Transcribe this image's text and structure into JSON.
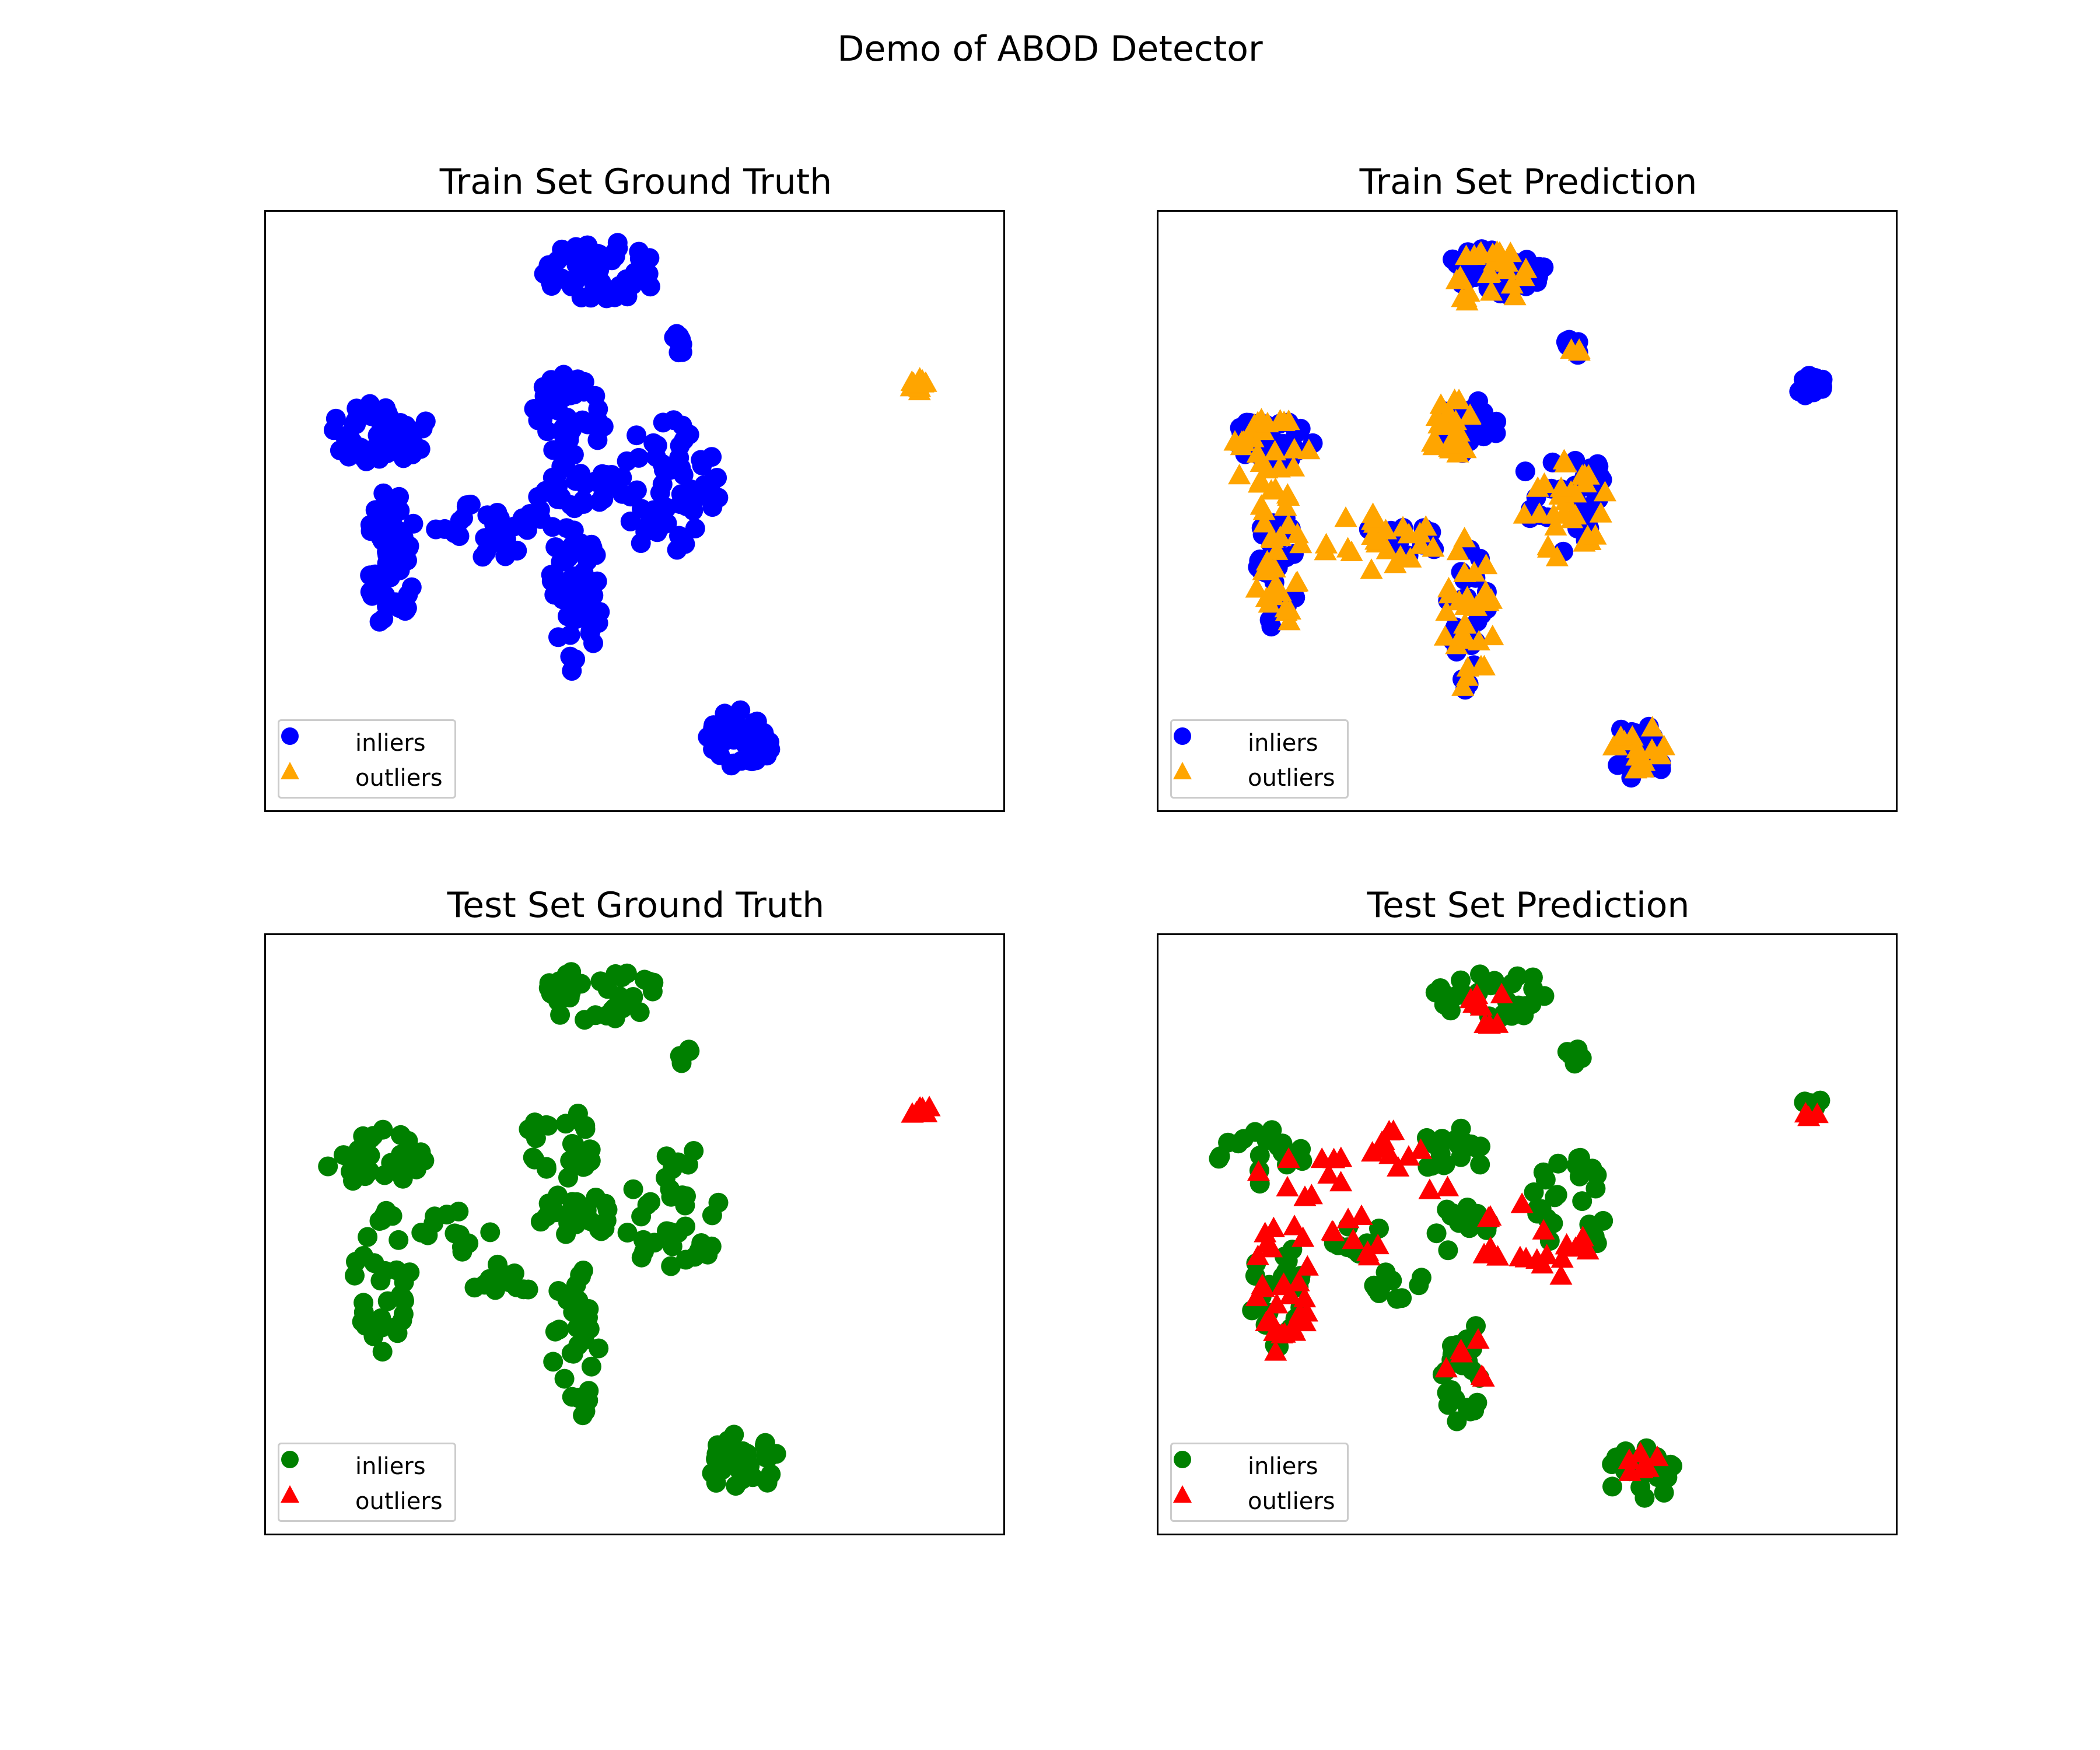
{
  "figure": {
    "title": "Demo of ABOD Detector"
  },
  "chart_data": [
    {
      "type": "scatter",
      "title": "Train Set Ground Truth",
      "xlabel": "",
      "ylabel": "",
      "axis_ticks": "hidden",
      "legend": {
        "position": "lower-left",
        "entries": [
          {
            "label": "inliers",
            "marker": "circle",
            "color": "#0000ff"
          },
          {
            "label": "outliers",
            "marker": "triangle",
            "color": "#ffa500"
          }
        ]
      },
      "series": [
        {
          "name": "inliers",
          "marker": "circle",
          "color": "#0000ff",
          "clusters": [
            {
              "center": [
                0.455,
                0.1
              ],
              "radius": [
                0.08,
                0.05
              ],
              "count": 60
            },
            {
              "center": [
                0.565,
                0.22
              ],
              "radius": [
                0.015,
                0.02
              ],
              "count": 10
            },
            {
              "center": [
                0.155,
                0.37
              ],
              "radius": [
                0.07,
                0.05
              ],
              "count": 45
            },
            {
              "center": [
                0.41,
                0.34
              ],
              "radius": [
                0.05,
                0.07
              ],
              "count": 45
            },
            {
              "center": [
                0.55,
                0.46
              ],
              "radius": [
                0.07,
                0.12
              ],
              "count": 55
            },
            {
              "center": [
                0.17,
                0.58
              ],
              "radius": [
                0.035,
                0.12
              ],
              "count": 55
            },
            {
              "center": [
                0.31,
                0.53
              ],
              "radius": [
                0.08,
                0.05
              ],
              "count": 30
            },
            {
              "center": [
                0.42,
                0.46
              ],
              "radius": [
                0.06,
                0.04
              ],
              "count": 30
            },
            {
              "center": [
                0.42,
                0.64
              ],
              "radius": [
                0.035,
                0.14
              ],
              "count": 45
            },
            {
              "center": [
                0.645,
                0.88
              ],
              "radius": [
                0.05,
                0.05
              ],
              "count": 45
            }
          ]
        },
        {
          "name": "outliers",
          "marker": "triangle",
          "color": "#ffa500",
          "clusters": [
            {
              "center": [
                0.885,
                0.29
              ],
              "radius": [
                0.012,
                0.012
              ],
              "count": 10
            }
          ]
        }
      ]
    },
    {
      "type": "scatter",
      "title": "Train Set Prediction",
      "xlabel": "",
      "ylabel": "",
      "axis_ticks": "hidden",
      "legend": {
        "position": "lower-left",
        "entries": [
          {
            "label": "inliers",
            "marker": "circle",
            "color": "#0000ff"
          },
          {
            "label": "outliers",
            "marker": "triangle",
            "color": "#ffa500"
          }
        ]
      },
      "series": [
        {
          "name": "inliers",
          "marker": "circle",
          "color": "#0000ff",
          "clusters": [
            {
              "center": [
                0.455,
                0.1
              ],
              "radius": [
                0.07,
                0.04
              ],
              "count": 40
            },
            {
              "center": [
                0.565,
                0.22
              ],
              "radius": [
                0.015,
                0.02
              ],
              "count": 8
            },
            {
              "center": [
                0.885,
                0.29
              ],
              "radius": [
                0.02,
                0.02
              ],
              "count": 14
            },
            {
              "center": [
                0.155,
                0.38
              ],
              "radius": [
                0.06,
                0.04
              ],
              "count": 30
            },
            {
              "center": [
                0.42,
                0.36
              ],
              "radius": [
                0.04,
                0.05
              ],
              "count": 30
            },
            {
              "center": [
                0.55,
                0.47
              ],
              "radius": [
                0.06,
                0.1
              ],
              "count": 30
            },
            {
              "center": [
                0.16,
                0.6
              ],
              "radius": [
                0.03,
                0.1
              ],
              "count": 30
            },
            {
              "center": [
                0.31,
                0.55
              ],
              "radius": [
                0.07,
                0.04
              ],
              "count": 20
            },
            {
              "center": [
                0.42,
                0.68
              ],
              "radius": [
                0.03,
                0.12
              ],
              "count": 25
            },
            {
              "center": [
                0.655,
                0.9
              ],
              "radius": [
                0.04,
                0.05
              ],
              "count": 30
            }
          ]
        },
        {
          "name": "outliers",
          "marker": "triangle",
          "color": "#ffa500",
          "clusters": [
            {
              "center": [
                0.45,
                0.11
              ],
              "radius": [
                0.06,
                0.05
              ],
              "count": 25
            },
            {
              "center": [
                0.565,
                0.23
              ],
              "radius": [
                0.01,
                0.01
              ],
              "count": 3
            },
            {
              "center": [
                0.15,
                0.4
              ],
              "radius": [
                0.06,
                0.06
              ],
              "count": 25
            },
            {
              "center": [
                0.4,
                0.35
              ],
              "radius": [
                0.04,
                0.06
              ],
              "count": 20
            },
            {
              "center": [
                0.55,
                0.48
              ],
              "radius": [
                0.06,
                0.1
              ],
              "count": 30
            },
            {
              "center": [
                0.16,
                0.58
              ],
              "radius": [
                0.035,
                0.12
              ],
              "count": 30
            },
            {
              "center": [
                0.3,
                0.55
              ],
              "radius": [
                0.08,
                0.05
              ],
              "count": 25
            },
            {
              "center": [
                0.42,
                0.67
              ],
              "radius": [
                0.035,
                0.13
              ],
              "count": 30
            },
            {
              "center": [
                0.655,
                0.89
              ],
              "radius": [
                0.04,
                0.05
              ],
              "count": 15
            }
          ]
        }
      ]
    },
    {
      "type": "scatter",
      "title": "Test Set Ground Truth",
      "xlabel": "",
      "ylabel": "",
      "axis_ticks": "hidden",
      "legend": {
        "position": "lower-left",
        "entries": [
          {
            "label": "inliers",
            "marker": "circle",
            "color": "#008000"
          },
          {
            "label": "outliers",
            "marker": "triangle",
            "color": "#ff0000"
          }
        ]
      },
      "series": [
        {
          "name": "inliers",
          "marker": "circle",
          "color": "#008000",
          "clusters": [
            {
              "center": [
                0.455,
                0.1
              ],
              "radius": [
                0.08,
                0.05
              ],
              "count": 35
            },
            {
              "center": [
                0.565,
                0.2
              ],
              "radius": [
                0.012,
                0.015
              ],
              "count": 5
            },
            {
              "center": [
                0.15,
                0.37
              ],
              "radius": [
                0.07,
                0.05
              ],
              "count": 30
            },
            {
              "center": [
                0.4,
                0.35
              ],
              "radius": [
                0.05,
                0.06
              ],
              "count": 28
            },
            {
              "center": [
                0.55,
                0.46
              ],
              "radius": [
                0.07,
                0.12
              ],
              "count": 35
            },
            {
              "center": [
                0.16,
                0.58
              ],
              "radius": [
                0.04,
                0.12
              ],
              "count": 35
            },
            {
              "center": [
                0.26,
                0.5
              ],
              "radius": [
                0.05,
                0.04
              ],
              "count": 12
            },
            {
              "center": [
                0.32,
                0.58
              ],
              "radius": [
                0.04,
                0.03
              ],
              "count": 12
            },
            {
              "center": [
                0.42,
                0.47
              ],
              "radius": [
                0.05,
                0.04
              ],
              "count": 20
            },
            {
              "center": [
                0.42,
                0.68
              ],
              "radius": [
                0.035,
                0.13
              ],
              "count": 30
            },
            {
              "center": [
                0.645,
                0.88
              ],
              "radius": [
                0.05,
                0.05
              ],
              "count": 30
            }
          ]
        },
        {
          "name": "outliers",
          "marker": "triangle",
          "color": "#ff0000",
          "clusters": [
            {
              "center": [
                0.885,
                0.29
              ],
              "radius": [
                0.015,
                0.012
              ],
              "count": 8
            }
          ]
        }
      ]
    },
    {
      "type": "scatter",
      "title": "Test Set Prediction",
      "xlabel": "",
      "ylabel": "",
      "axis_ticks": "hidden",
      "legend": {
        "position": "lower-left",
        "entries": [
          {
            "label": "inliers",
            "marker": "circle",
            "color": "#008000"
          },
          {
            "label": "outliers",
            "marker": "triangle",
            "color": "#ff0000"
          }
        ]
      },
      "series": [
        {
          "name": "inliers",
          "marker": "circle",
          "color": "#008000",
          "clusters": [
            {
              "center": [
                0.455,
                0.1
              ],
              "radius": [
                0.08,
                0.04
              ],
              "count": 28
            },
            {
              "center": [
                0.565,
                0.2
              ],
              "radius": [
                0.012,
                0.015
              ],
              "count": 5
            },
            {
              "center": [
                0.89,
                0.28
              ],
              "radius": [
                0.015,
                0.012
              ],
              "count": 5
            },
            {
              "center": [
                0.14,
                0.37
              ],
              "radius": [
                0.06,
                0.05
              ],
              "count": 22
            },
            {
              "center": [
                0.4,
                0.36
              ],
              "radius": [
                0.05,
                0.05
              ],
              "count": 20
            },
            {
              "center": [
                0.55,
                0.46
              ],
              "radius": [
                0.06,
                0.1
              ],
              "count": 25
            },
            {
              "center": [
                0.16,
                0.6
              ],
              "radius": [
                0.035,
                0.1
              ],
              "count": 22
            },
            {
              "center": [
                0.27,
                0.51
              ],
              "radius": [
                0.04,
                0.03
              ],
              "count": 8
            },
            {
              "center": [
                0.32,
                0.58
              ],
              "radius": [
                0.04,
                0.03
              ],
              "count": 10
            },
            {
              "center": [
                0.41,
                0.49
              ],
              "radius": [
                0.05,
                0.04
              ],
              "count": 15
            },
            {
              "center": [
                0.41,
                0.72
              ],
              "radius": [
                0.03,
                0.1
              ],
              "count": 22
            },
            {
              "center": [
                0.655,
                0.9
              ],
              "radius": [
                0.045,
                0.05
              ],
              "count": 22
            }
          ]
        },
        {
          "name": "outliers",
          "marker": "triangle",
          "color": "#ff0000",
          "clusters": [
            {
              "center": [
                0.45,
                0.12
              ],
              "radius": [
                0.03,
                0.03
              ],
              "count": 8
            },
            {
              "center": [
                0.2,
                0.4
              ],
              "radius": [
                0.08,
                0.04
              ],
              "count": 10
            },
            {
              "center": [
                0.35,
                0.38
              ],
              "radius": [
                0.08,
                0.06
              ],
              "count": 12
            },
            {
              "center": [
                0.48,
                0.5
              ],
              "radius": [
                0.05,
                0.06
              ],
              "count": 8
            },
            {
              "center": [
                0.55,
                0.52
              ],
              "radius": [
                0.05,
                0.08
              ],
              "count": 12
            },
            {
              "center": [
                0.17,
                0.59
              ],
              "radius": [
                0.04,
                0.12
              ],
              "count": 30
            },
            {
              "center": [
                0.27,
                0.5
              ],
              "radius": [
                0.04,
                0.04
              ],
              "count": 8
            },
            {
              "center": [
                0.42,
                0.7
              ],
              "radius": [
                0.04,
                0.05
              ],
              "count": 6
            },
            {
              "center": [
                0.88,
                0.3
              ],
              "radius": [
                0.02,
                0.01
              ],
              "count": 3
            },
            {
              "center": [
                0.66,
                0.88
              ],
              "radius": [
                0.03,
                0.03
              ],
              "count": 6
            }
          ]
        }
      ]
    }
  ]
}
